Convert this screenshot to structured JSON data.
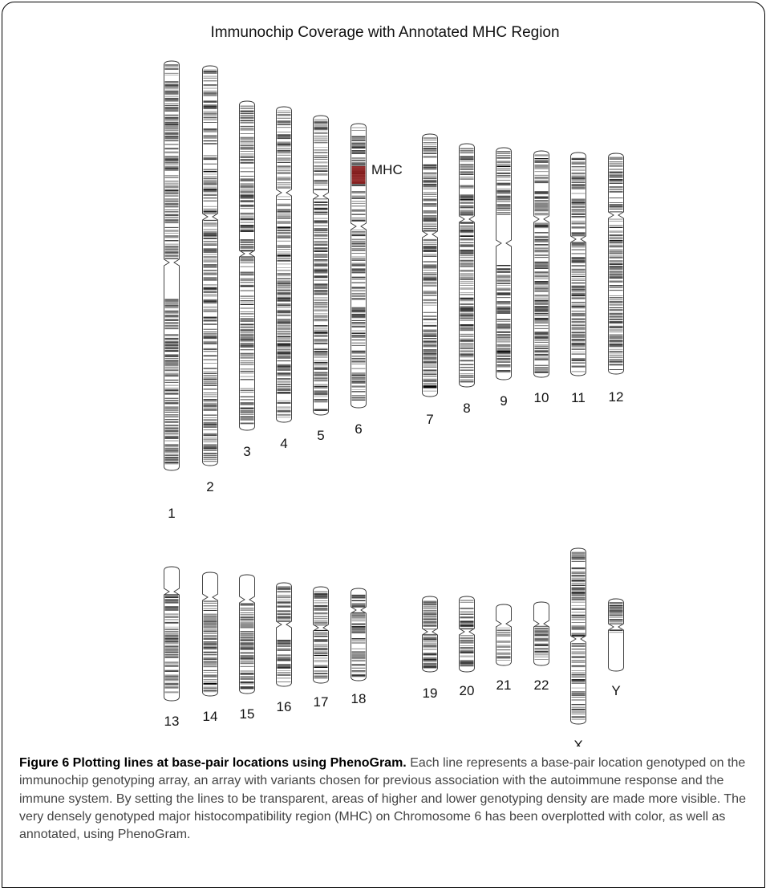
{
  "figure": {
    "title": "Immunochip Coverage with Annotated MHC Region",
    "annotation": "MHC",
    "annotation_color": "#8b1a1a"
  },
  "caption": {
    "label": "Figure 6 Plotting lines at base-pair locations using PhenoGram.",
    "text": "Each line represents a base-pair location genotyped on the immunochip genotyping array, an array with variants chosen for previous association with the autoimmune response and the immune system. By setting the lines to be transparent, areas of higher and lower genotyping density are made more visible. The very densely genotyped major histocompatibility region (MHC) on Chromosome 6 has been overplotted with color, as well as annotated, using PhenoGram."
  },
  "chart_data": {
    "type": "ideogram",
    "title": "Immunochip Coverage with Annotated MHC Region",
    "chromosomes": [
      "1",
      "2",
      "3",
      "4",
      "5",
      "6",
      "7",
      "8",
      "9",
      "10",
      "11",
      "12",
      "13",
      "14",
      "15",
      "16",
      "17",
      "18",
      "19",
      "20",
      "21",
      "22",
      "X",
      "Y"
    ],
    "annotated_region": {
      "chromosome": "6",
      "label": "MHC",
      "color": "#8b1a1a"
    }
  }
}
